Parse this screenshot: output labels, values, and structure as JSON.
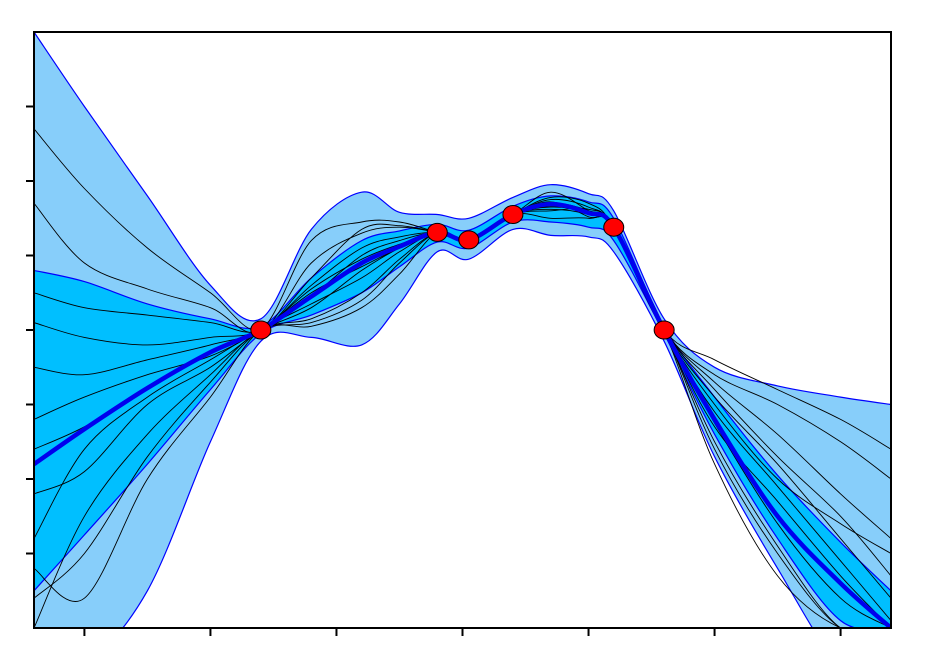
{
  "chart_data": {
    "type": "line",
    "title": "",
    "xlabel": "",
    "ylabel": "",
    "xlim": [
      -0.4,
      6.4
    ],
    "ylim": [
      -4.0,
      4.0
    ],
    "x_ticks": [
      0,
      1,
      2,
      3,
      4,
      5,
      6
    ],
    "y_ticks": [
      -3,
      -2,
      -1,
      0,
      1,
      2,
      3
    ],
    "tick_labels_shown": false,
    "grid": false,
    "legend": "none",
    "colors": {
      "outer_band": "#87cefa",
      "inner_band": "#00bfff",
      "band_edge": "#0000ff",
      "mean": "#0000ee",
      "samples": "#000000",
      "observations": "#ff0000"
    },
    "observations": {
      "x": [
        1.4,
        2.8,
        3.05,
        3.4,
        4.2,
        4.6
      ],
      "y": [
        0.0,
        1.31,
        1.21,
        1.55,
        1.38,
        0.0
      ]
    },
    "band_x": [
      -0.4,
      0.0,
      0.5,
      1.0,
      1.4,
      1.8,
      2.2,
      2.5,
      2.8,
      3.05,
      3.4,
      3.7,
      4.0,
      4.2,
      4.6,
      5.0,
      5.5,
      6.0,
      6.4
    ],
    "mean": [
      -1.8,
      -1.33,
      -0.78,
      -0.3,
      0.0,
      0.45,
      0.9,
      1.12,
      1.31,
      1.21,
      1.55,
      1.69,
      1.57,
      1.38,
      0.0,
      -1.2,
      -2.5,
      -3.4,
      -4.0
    ],
    "inner_band_lower": [
      -3.5,
      -2.75,
      -1.8,
      -0.8,
      -0.05,
      0.2,
      0.5,
      0.85,
      1.18,
      1.1,
      1.45,
      1.45,
      1.38,
      1.2,
      -0.05,
      -1.4,
      -2.8,
      -3.9,
      -4.0
    ],
    "inner_band_upper": [
      0.8,
      0.65,
      0.35,
      0.15,
      0.05,
      0.7,
      1.2,
      1.33,
      1.42,
      1.34,
      1.66,
      1.8,
      1.72,
      1.5,
      0.05,
      -0.9,
      -1.95,
      -2.85,
      -3.5
    ],
    "outer_band_lower": [
      -4.5,
      -4.5,
      -3.5,
      -1.5,
      -0.15,
      -0.1,
      -0.2,
      0.35,
      1.05,
      0.95,
      1.35,
      1.27,
      1.25,
      1.05,
      -0.15,
      -1.7,
      -3.2,
      -4.5,
      -4.5
    ],
    "outer_band_upper": [
      4.0,
      3.0,
      1.8,
      0.6,
      0.15,
      1.35,
      1.85,
      1.58,
      1.55,
      1.5,
      1.78,
      1.95,
      1.83,
      1.6,
      0.15,
      -0.5,
      -0.75,
      -0.9,
      -1.0
    ],
    "samples": [
      {
        "x": [
          -0.4,
          0.0,
          0.5,
          1.0,
          1.4,
          1.8,
          2.2,
          2.5,
          2.8,
          3.05,
          3.4,
          3.7,
          4.0,
          4.2,
          4.6,
          5.0,
          5.5,
          6.0,
          6.4
        ],
        "y": [
          -2.8,
          -1.6,
          -0.9,
          -0.4,
          0.0,
          0.3,
          0.8,
          1.1,
          1.31,
          1.21,
          1.55,
          1.7,
          1.56,
          1.38,
          0.0,
          -1.3,
          -2.3,
          -3.3,
          -4.0
        ]
      },
      {
        "x": [
          -0.4,
          0.0,
          0.5,
          1.0,
          1.4,
          1.8,
          2.2,
          2.5,
          2.8,
          3.05,
          3.4,
          3.7,
          4.0,
          4.2,
          4.6,
          5.0,
          5.5,
          6.0,
          6.4
        ],
        "y": [
          -0.5,
          -0.6,
          -0.4,
          -0.2,
          0.0,
          0.55,
          0.95,
          1.15,
          1.31,
          1.21,
          1.55,
          1.65,
          1.58,
          1.38,
          0.0,
          -0.9,
          -1.8,
          -2.8,
          -3.6
        ]
      },
      {
        "x": [
          -0.4,
          0.0,
          0.5,
          1.0,
          1.4,
          1.8,
          2.2,
          2.5,
          2.8,
          3.05,
          3.4,
          3.7,
          4.0,
          4.2,
          4.6,
          5.0,
          5.5,
          6.0,
          6.4
        ],
        "y": [
          0.5,
          0.3,
          0.2,
          0.1,
          0.0,
          0.7,
          1.35,
          1.4,
          1.31,
          1.21,
          1.55,
          1.85,
          1.6,
          1.38,
          0.0,
          -0.6,
          -1.0,
          -1.5,
          -2.0
        ]
      },
      {
        "x": [
          -0.4,
          0.0,
          0.5,
          1.0,
          1.4,
          1.8,
          2.2,
          2.5,
          2.8,
          3.05,
          3.4,
          3.7,
          4.0,
          4.2,
          4.6,
          5.0,
          5.5,
          6.0,
          6.4
        ],
        "y": [
          -4.0,
          -2.5,
          -1.4,
          -0.6,
          0.0,
          0.1,
          0.4,
          0.9,
          1.31,
          1.21,
          1.55,
          1.5,
          1.5,
          1.38,
          0.0,
          -1.5,
          -2.9,
          -4.0,
          -4.0
        ]
      },
      {
        "x": [
          -0.4,
          0.0,
          0.5,
          1.0,
          1.4,
          1.8,
          2.2,
          2.5,
          2.8,
          3.05,
          3.4,
          3.7,
          4.0,
          4.2,
          4.6,
          5.0,
          5.5,
          6.0,
          6.4
        ],
        "y": [
          1.7,
          0.9,
          0.55,
          0.3,
          0.0,
          1.2,
          1.45,
          1.45,
          1.31,
          1.21,
          1.55,
          1.78,
          1.7,
          1.38,
          0.0,
          -0.4,
          -0.8,
          -1.2,
          -1.6
        ]
      },
      {
        "x": [
          -0.4,
          0.0,
          0.5,
          1.0,
          1.4,
          1.8,
          2.2,
          2.5,
          2.8,
          3.05,
          3.4,
          3.7,
          4.0,
          4.2,
          4.6,
          5.0,
          5.5,
          6.0,
          6.4
        ],
        "y": [
          -3.2,
          -3.6,
          -2.0,
          -0.9,
          0.0,
          0.05,
          0.3,
          0.75,
          1.31,
          1.21,
          1.55,
          1.6,
          1.62,
          1.38,
          0.0,
          -1.8,
          -3.3,
          -4.0,
          -4.0
        ]
      },
      {
        "x": [
          -0.4,
          0.0,
          0.5,
          1.0,
          1.4,
          1.8,
          2.2,
          2.5,
          2.8,
          3.05,
          3.4,
          3.7,
          4.0,
          4.2,
          4.6,
          5.0,
          5.5,
          6.0,
          6.4
        ],
        "y": [
          -1.2,
          -0.9,
          -0.6,
          -0.35,
          0.0,
          0.45,
          1.0,
          1.2,
          1.31,
          1.21,
          1.55,
          1.72,
          1.52,
          1.38,
          0.0,
          -1.0,
          -2.0,
          -2.6,
          -3.0
        ]
      },
      {
        "x": [
          -0.4,
          0.0,
          0.5,
          1.0,
          1.4,
          1.8,
          2.2,
          2.5,
          2.8,
          3.05,
          3.4,
          3.7,
          4.0,
          4.2,
          4.6,
          5.0,
          5.5,
          6.0,
          6.4
        ],
        "y": [
          -2.2,
          -1.9,
          -1.0,
          -0.5,
          0.0,
          0.35,
          0.7,
          1.05,
          1.31,
          1.21,
          1.55,
          1.68,
          1.6,
          1.38,
          0.0,
          -1.1,
          -2.1,
          -3.1,
          -3.9
        ]
      },
      {
        "x": [
          -0.4,
          0.0,
          0.5,
          1.0,
          1.4,
          1.8,
          2.2,
          2.5,
          2.8,
          3.05,
          3.4,
          3.7,
          4.0,
          4.2,
          4.6,
          5.0,
          5.5,
          6.0,
          6.4
        ],
        "y": [
          2.7,
          1.9,
          1.1,
          0.5,
          0.0,
          0.9,
          1.3,
          1.38,
          1.31,
          1.21,
          1.55,
          1.75,
          1.65,
          1.38,
          0.0,
          -0.7,
          -1.4,
          -2.2,
          -2.8
        ]
      },
      {
        "x": [
          -0.4,
          0.0,
          0.5,
          1.0,
          1.4,
          1.8,
          2.2,
          2.5,
          2.8,
          3.05,
          3.4,
          3.7,
          4.0,
          4.2,
          4.6,
          5.0,
          5.5,
          6.0,
          6.4
        ],
        "y": [
          -3.6,
          -3.0,
          -1.7,
          -0.7,
          0.0,
          0.15,
          0.5,
          0.95,
          1.31,
          1.21,
          1.55,
          1.62,
          1.55,
          1.38,
          0.0,
          -1.6,
          -3.0,
          -4.0,
          -4.0
        ]
      },
      {
        "x": [
          -0.4,
          0.0,
          0.5,
          1.0,
          1.4,
          1.8,
          2.2,
          2.5,
          2.8,
          3.05,
          3.4,
          3.7,
          4.0,
          4.2,
          4.6,
          5.0,
          5.5,
          6.0,
          6.4
        ],
        "y": [
          0.1,
          -0.1,
          -0.2,
          -0.1,
          0.0,
          0.6,
          1.1,
          1.25,
          1.31,
          1.21,
          1.55,
          1.7,
          1.6,
          1.38,
          0.0,
          -0.8,
          -1.7,
          -2.5,
          -3.3
        ]
      },
      {
        "x": [
          -0.4,
          0.0,
          0.5,
          1.0,
          1.4,
          1.8,
          2.2,
          2.5,
          2.8,
          3.05,
          3.4,
          3.7,
          4.0,
          4.2,
          4.6,
          5.0,
          5.5,
          6.0,
          6.4
        ],
        "y": [
          -1.6,
          -1.3,
          -0.8,
          -0.3,
          0.0,
          0.5,
          0.85,
          1.1,
          1.31,
          1.21,
          1.55,
          1.66,
          1.57,
          1.38,
          0.0,
          -1.25,
          -2.6,
          -3.6,
          -4.0
        ]
      }
    ]
  }
}
